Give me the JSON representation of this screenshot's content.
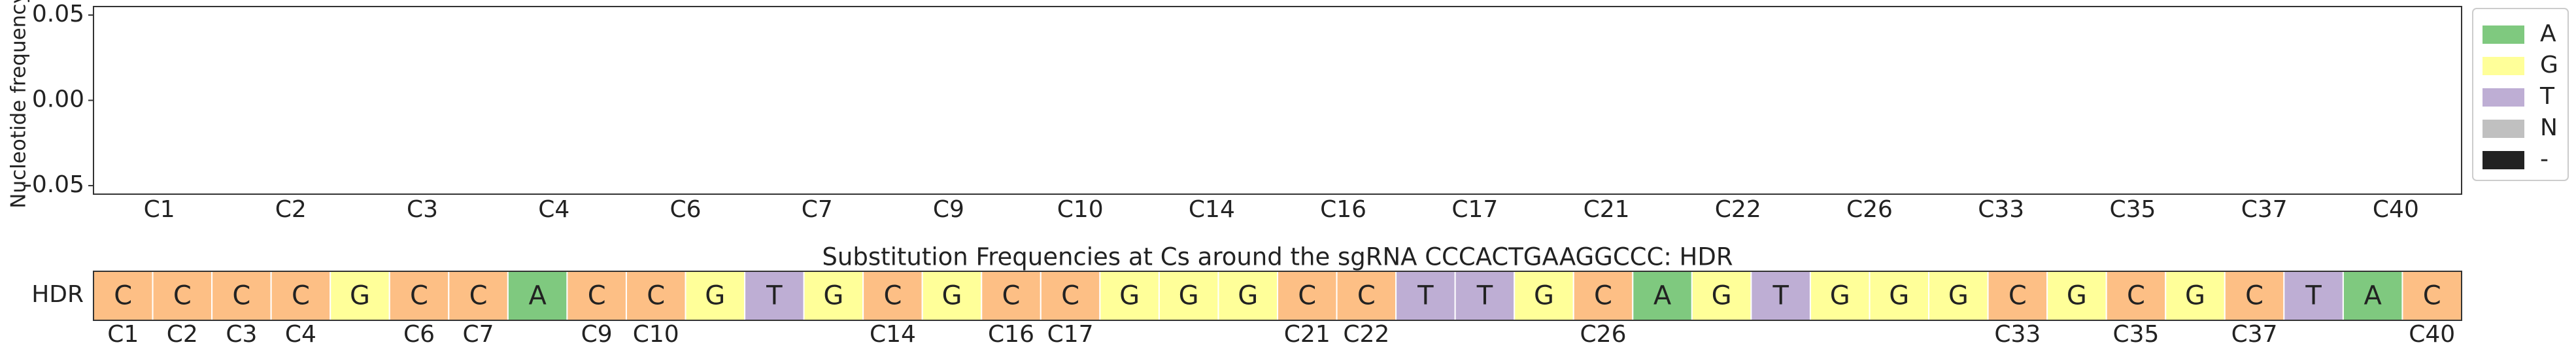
{
  "chart_data": [
    {
      "type": "bar",
      "ylabel": "Nucleotide frequency",
      "categories": [
        "C1",
        "C2",
        "C3",
        "C4",
        "C6",
        "C7",
        "C9",
        "C10",
        "C14",
        "C16",
        "C17",
        "C21",
        "C22",
        "C26",
        "C33",
        "C35",
        "C37",
        "C40"
      ],
      "series": [
        {
          "name": "A",
          "color": "#7fc97f",
          "values": [
            0,
            0,
            0,
            0,
            0,
            0,
            0,
            0,
            0,
            0,
            0,
            0,
            0,
            0,
            0,
            0,
            0,
            0
          ]
        },
        {
          "name": "G",
          "color": "#ffff99",
          "values": [
            0,
            0,
            0,
            0,
            0,
            0,
            0,
            0,
            0,
            0,
            0,
            0,
            0,
            0,
            0,
            0,
            0,
            0
          ]
        },
        {
          "name": "T",
          "color": "#beaed4",
          "values": [
            0,
            0,
            0,
            0,
            0,
            0,
            0,
            0,
            0,
            0,
            0,
            0,
            0,
            0,
            0,
            0,
            0,
            0
          ]
        },
        {
          "name": "N",
          "color": "#c0c0c0",
          "values": [
            0,
            0,
            0,
            0,
            0,
            0,
            0,
            0,
            0,
            0,
            0,
            0,
            0,
            0,
            0,
            0,
            0,
            0
          ]
        },
        {
          "name": "-",
          "color": "#222222",
          "values": [
            0,
            0,
            0,
            0,
            0,
            0,
            0,
            0,
            0,
            0,
            0,
            0,
            0,
            0,
            0,
            0,
            0,
            0
          ]
        }
      ],
      "ylim": [
        -0.055,
        0.055
      ],
      "yticks": [
        -0.05,
        {
          "value": 0,
          "label": "0.00"
        },
        0.05
      ],
      "stacked": true,
      "legend": "outside-right"
    },
    {
      "type": "sequence",
      "title": "Substitution Frequencies at Cs around the sgRNA CCCACTGAAGGCCC: HDR",
      "row_label": "HDR",
      "sequence": [
        "C",
        "C",
        "C",
        "C",
        "G",
        "C",
        "C",
        "A",
        "C",
        "C",
        "G",
        "T",
        "G",
        "C",
        "G",
        "C",
        "C",
        "G",
        "G",
        "G",
        "C",
        "C",
        "T",
        "T",
        "G",
        "C",
        "A",
        "G",
        "T",
        "G",
        "G",
        "G",
        "C",
        "G",
        "C",
        "G",
        "C",
        "T",
        "A",
        "C"
      ],
      "labels": [
        "C1",
        "C2",
        "C3",
        "C4",
        null,
        "C6",
        "C7",
        null,
        "C9",
        "C10",
        null,
        null,
        null,
        "C14",
        null,
        "C16",
        "C17",
        null,
        null,
        null,
        "C21",
        "C22",
        null,
        null,
        null,
        "C26",
        null,
        null,
        null,
        null,
        null,
        null,
        "C33",
        null,
        "C35",
        null,
        "C37",
        null,
        null,
        "C40"
      ],
      "base_colors": {
        "A": "#7fc97f",
        "C": "#fdbf85",
        "G": "#ffff99",
        "T": "#beaed4"
      }
    }
  ]
}
